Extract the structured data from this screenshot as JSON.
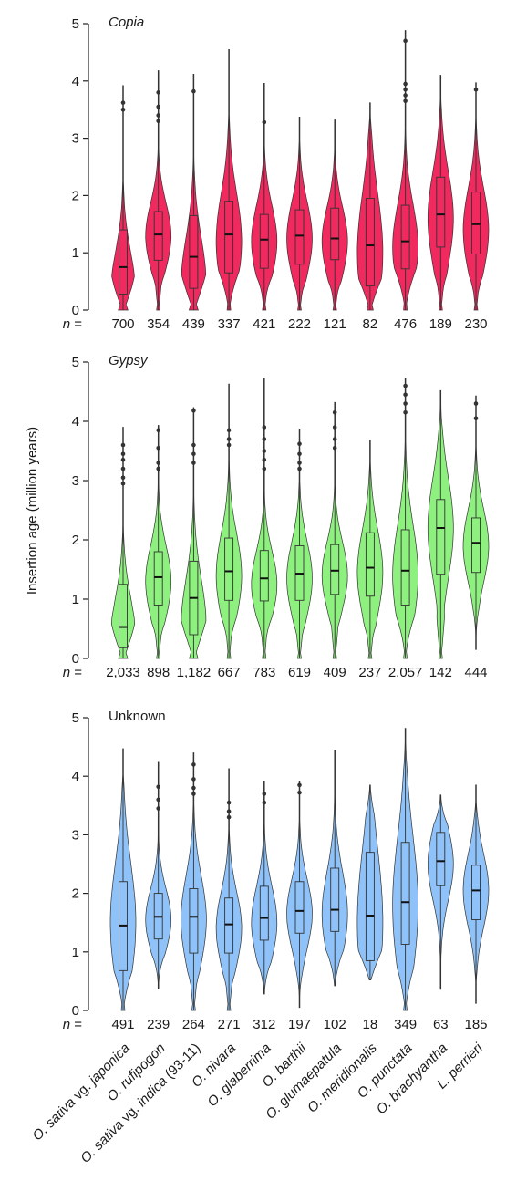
{
  "chart_data": {
    "type": "violin",
    "ylabel": "Insertion age (million years)",
    "ylim": [
      0,
      5
    ],
    "yticks": [
      "0",
      "1",
      "2",
      "3",
      "4",
      "5"
    ],
    "n_prefix": "n =",
    "categories": [
      {
        "pre": "O. sativa",
        "italic": "O. sativa",
        "rest": " vg. ",
        "italic2": "japonica"
      },
      {
        "italic": "O. rufipogon"
      },
      {
        "italic": "O. sativa",
        "rest": " vg. ",
        "italic2": "indica",
        "rest2": " (93-11)"
      },
      {
        "italic": "O. nivara"
      },
      {
        "italic": "O. glaberrima"
      },
      {
        "italic": "O. barthii"
      },
      {
        "italic": "O. glumaepatula"
      },
      {
        "italic": "O. meridionalis"
      },
      {
        "italic": "O. punctata"
      },
      {
        "italic": "O. brachyantha"
      },
      {
        "italic": "L. perrieri"
      }
    ],
    "panels": [
      {
        "title": "Copia",
        "italic": true,
        "color": "#f0295e",
        "n": [
          "700",
          "354",
          "439",
          "337",
          "421",
          "222",
          "121",
          "82",
          "476",
          "189",
          "230"
        ],
        "violins": [
          {
            "min": 0,
            "max": 3.92,
            "q1": 0.28,
            "median": 0.75,
            "q3": 1.4,
            "peak": 0.25,
            "outliers": [
              3.62,
              3.5
            ]
          },
          {
            "min": 0,
            "max": 4.18,
            "q1": 0.87,
            "median": 1.32,
            "q3": 1.72,
            "peak": 1.3,
            "outliers": [
              3.8,
              3.55,
              3.4,
              3.3
            ]
          },
          {
            "min": 0,
            "max": 4.12,
            "q1": 0.38,
            "median": 0.93,
            "q3": 1.65,
            "peak": 0.4,
            "outliers": [
              3.82
            ]
          },
          {
            "min": 0,
            "max": 4.55,
            "q1": 0.65,
            "median": 1.32,
            "q3": 1.9,
            "peak": 1.2,
            "outliers": []
          },
          {
            "min": 0,
            "max": 3.96,
            "q1": 0.73,
            "median": 1.23,
            "q3": 1.67,
            "peak": 1.2,
            "outliers": [
              3.28
            ]
          },
          {
            "min": 0,
            "max": 3.37,
            "q1": 0.8,
            "median": 1.3,
            "q3": 1.75,
            "peak": 1.25,
            "outliers": []
          },
          {
            "min": 0,
            "max": 3.32,
            "q1": 0.88,
            "median": 1.25,
            "q3": 1.78,
            "peak": 1.2,
            "outliers": []
          },
          {
            "min": 0,
            "max": 3.62,
            "q1": 0.42,
            "median": 1.13,
            "q3": 1.95,
            "peak": 1.0,
            "outliers": []
          },
          {
            "min": 0,
            "max": 4.88,
            "q1": 0.72,
            "median": 1.2,
            "q3": 1.83,
            "peak": 1.1,
            "outliers": [
              4.7,
              3.95,
              3.85,
              3.75,
              3.65
            ]
          },
          {
            "min": 0,
            "max": 4.1,
            "q1": 1.1,
            "median": 1.67,
            "q3": 2.32,
            "peak": 1.6,
            "outliers": []
          },
          {
            "min": 0,
            "max": 3.97,
            "q1": 0.98,
            "median": 1.5,
            "q3": 2.06,
            "peak": 1.4,
            "outliers": [
              3.85
            ]
          }
        ]
      },
      {
        "title": "Gypsy",
        "italic": true,
        "color": "#8ef07e",
        "n": [
          "2,033",
          "898",
          "1,182",
          "667",
          "783",
          "619",
          "409",
          "237",
          "2,057",
          "142",
          "444"
        ],
        "violins": [
          {
            "min": 0,
            "max": 3.9,
            "q1": 0.18,
            "median": 0.53,
            "q3": 1.25,
            "peak": 0.3,
            "outliers": [
              3.45,
              3.35,
              3.2,
              3.05,
              2.95,
              3.6
            ]
          },
          {
            "min": 0,
            "max": 3.93,
            "q1": 0.9,
            "median": 1.37,
            "q3": 1.8,
            "peak": 1.3,
            "outliers": [
              3.85,
              3.55,
              3.3,
              3.2
            ]
          },
          {
            "min": 0,
            "max": 4.23,
            "q1": 0.4,
            "median": 1.02,
            "q3": 1.64,
            "peak": 0.5,
            "outliers": [
              4.18,
              3.6,
              3.45,
              3.3
            ]
          },
          {
            "min": 0,
            "max": 4.63,
            "q1": 0.98,
            "median": 1.47,
            "q3": 2.03,
            "peak": 1.4,
            "outliers": [
              3.85,
              3.7,
              3.6
            ]
          },
          {
            "min": 0,
            "max": 4.72,
            "q1": 0.97,
            "median": 1.35,
            "q3": 1.82,
            "peak": 1.25,
            "outliers": [
              3.9,
              3.7,
              3.5,
              3.35,
              3.2
            ]
          },
          {
            "min": 0,
            "max": 3.87,
            "q1": 0.98,
            "median": 1.43,
            "q3": 1.9,
            "peak": 1.35,
            "outliers": [
              3.62,
              3.45,
              3.3,
              3.2
            ]
          },
          {
            "min": 0,
            "max": 4.32,
            "q1": 1.08,
            "median": 1.48,
            "q3": 1.92,
            "peak": 1.4,
            "outliers": [
              4.15,
              3.9,
              3.7,
              3.55
            ]
          },
          {
            "min": 0,
            "max": 3.68,
            "q1": 1.05,
            "median": 1.53,
            "q3": 2.12,
            "peak": 1.45,
            "outliers": []
          },
          {
            "min": 0,
            "max": 4.72,
            "q1": 0.9,
            "median": 1.48,
            "q3": 2.17,
            "peak": 1.4,
            "outliers": [
              4.6,
              4.45,
              4.3,
              4.15
            ]
          },
          {
            "min": 0,
            "max": 4.52,
            "q1": 1.42,
            "median": 2.2,
            "q3": 2.68,
            "peak": 2.2,
            "outliers": []
          },
          {
            "min": 0.15,
            "max": 4.43,
            "q1": 1.45,
            "median": 1.95,
            "q3": 2.37,
            "peak": 1.9,
            "outliers": [
              4.3,
              4.05
            ]
          }
        ]
      },
      {
        "title": "Unknown",
        "italic": false,
        "color": "#8ec2f8",
        "n": [
          "491",
          "239",
          "264",
          "271",
          "312",
          "197",
          "102",
          "18",
          "349",
          "63",
          "185"
        ],
        "violins": [
          {
            "min": 0,
            "max": 4.47,
            "q1": 0.68,
            "median": 1.45,
            "q3": 2.2,
            "peak": 1.5,
            "outliers": []
          },
          {
            "min": 0.38,
            "max": 4.24,
            "q1": 1.22,
            "median": 1.6,
            "q3": 2.0,
            "peak": 1.55,
            "outliers": [
              3.82,
              3.6,
              3.45
            ]
          },
          {
            "min": 0,
            "max": 4.4,
            "q1": 0.98,
            "median": 1.6,
            "q3": 2.08,
            "peak": 1.55,
            "outliers": [
              4.2,
              3.95,
              3.8,
              3.7
            ]
          },
          {
            "min": 0,
            "max": 4.13,
            "q1": 0.98,
            "median": 1.47,
            "q3": 1.92,
            "peak": 1.4,
            "outliers": [
              3.55,
              3.4,
              3.3
            ]
          },
          {
            "min": 0.28,
            "max": 3.92,
            "q1": 1.2,
            "median": 1.58,
            "q3": 2.12,
            "peak": 1.5,
            "outliers": [
              3.7,
              3.55
            ]
          },
          {
            "min": 0.05,
            "max": 3.92,
            "q1": 1.32,
            "median": 1.7,
            "q3": 2.2,
            "peak": 1.65,
            "outliers": [
              3.85,
              3.72
            ]
          },
          {
            "min": 0.42,
            "max": 4.45,
            "q1": 1.35,
            "median": 1.72,
            "q3": 2.43,
            "peak": 1.65,
            "outliers": []
          },
          {
            "min": 0.52,
            "max": 3.85,
            "q1": 0.85,
            "median": 1.62,
            "q3": 2.7,
            "peak": 1.5,
            "outliers": []
          },
          {
            "min": 0,
            "max": 4.82,
            "q1": 1.13,
            "median": 1.85,
            "q3": 2.87,
            "peak": 1.8,
            "outliers": []
          },
          {
            "min": 0.36,
            "max": 3.68,
            "q1": 2.13,
            "median": 2.55,
            "q3": 3.04,
            "peak": 2.5,
            "outliers": []
          },
          {
            "min": 0.12,
            "max": 3.85,
            "q1": 1.55,
            "median": 2.05,
            "q3": 2.48,
            "peak": 2.05,
            "outliers": []
          }
        ]
      }
    ]
  }
}
